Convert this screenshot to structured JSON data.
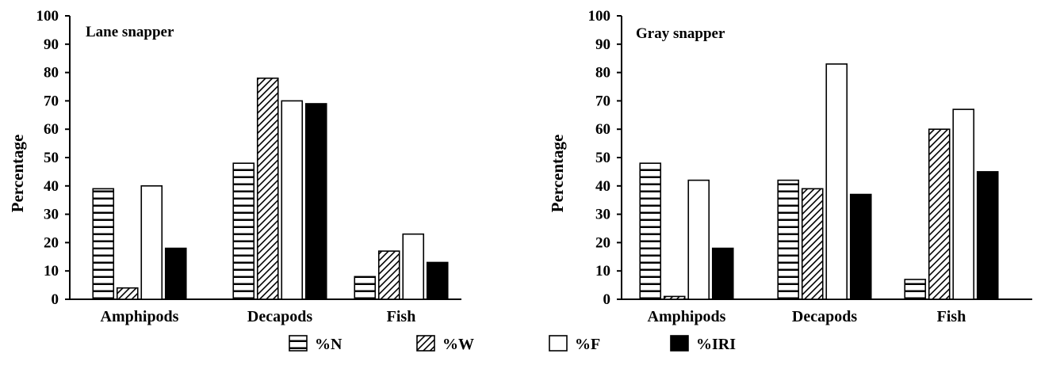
{
  "chart_data": [
    {
      "type": "bar",
      "title": "Lane  snapper",
      "ylabel": "Percentage",
      "xlabel": "",
      "ylim": [
        0,
        100
      ],
      "yticks": [
        0,
        10,
        20,
        30,
        40,
        50,
        60,
        70,
        80,
        90,
        100
      ],
      "categories": [
        "Amphipods",
        "Decapods",
        "Fish"
      ],
      "series": [
        {
          "name": "%N",
          "values": [
            39,
            48,
            8
          ]
        },
        {
          "name": "%W",
          "values": [
            4,
            78,
            17
          ]
        },
        {
          "name": "%F",
          "values": [
            40,
            70,
            23
          ]
        },
        {
          "name": "%IRI",
          "values": [
            18,
            69,
            13
          ]
        }
      ],
      "grid": false
    },
    {
      "type": "bar",
      "title": "Gray snapper",
      "ylabel": "Percentage",
      "xlabel": "",
      "ylim": [
        0,
        100
      ],
      "yticks": [
        0,
        10,
        20,
        30,
        40,
        50,
        60,
        70,
        80,
        90,
        100
      ],
      "categories": [
        "Amphipods",
        "Decapods",
        "Fish"
      ],
      "series": [
        {
          "name": "%N",
          "values": [
            48,
            42,
            7
          ]
        },
        {
          "name": "%W",
          "values": [
            1,
            39,
            60
          ]
        },
        {
          "name": "%F",
          "values": [
            42,
            83,
            67
          ]
        },
        {
          "name": "%IRI",
          "values": [
            18,
            37,
            45
          ]
        }
      ],
      "grid": false
    }
  ],
  "legend": {
    "placement": "bottom",
    "items": [
      {
        "label": "%N",
        "pattern": "horizontal-stripes"
      },
      {
        "label": "%W",
        "pattern": "diagonal-hatch"
      },
      {
        "label": "%F",
        "pattern": "open"
      },
      {
        "label": "%IRI",
        "pattern": "solid-black"
      }
    ]
  },
  "colors": {
    "ink": "#000000",
    "background": "#ffffff"
  }
}
